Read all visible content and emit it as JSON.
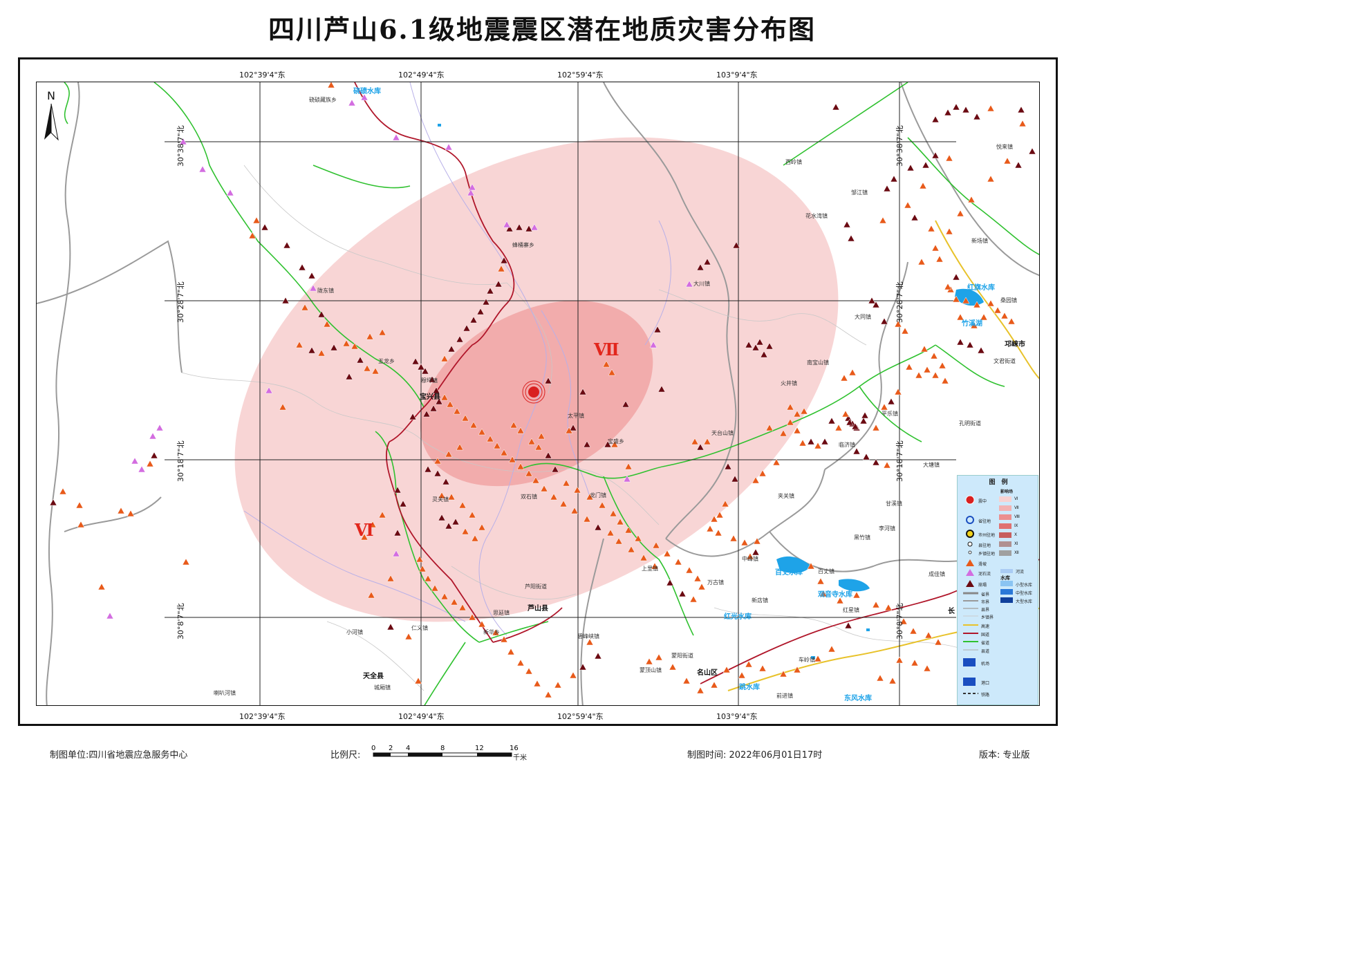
{
  "title": "四川芦山6.1级地震震区潜在地质灾害分布图",
  "coords": {
    "lon": [
      "102°39'4\"东",
      "102°49'4\"东",
      "102°59'4\"东",
      "103°9'4\"东"
    ],
    "lat": [
      "30°38'7\"北",
      "30°28'7\"北",
      "30°18'7\"北",
      "30°8'7\"北"
    ]
  },
  "zones": {
    "vi": "Ⅵ",
    "vii": "Ⅶ"
  },
  "places": {
    "qiaoqi": "硗碛藏族乡",
    "fengtong": "蜂桶寨乡",
    "longdong": "陇东镇",
    "wulong": "五龙乡",
    "muping": "穆坪镇",
    "baoxing": "宝兴县",
    "taiping": "太平镇",
    "baosheng": "宝盛乡",
    "dachuan": "大川镇",
    "xiling": "西岭镇",
    "huashuiwan": "花水湾镇",
    "yunhua": "邹江镇",
    "datong": "大同镇",
    "nanbaoshan": "南宝山镇",
    "huojing": "火井镇",
    "tiantaishan": "天台山镇",
    "linqiong": "临济镇",
    "jiaguan": "夹关镇",
    "pingle": "平乐镇",
    "kongming": "孔明街道",
    "dating": "大塘镇",
    "ganxi": "甘溪镇",
    "lijing": "李河镇",
    "huizhu": "黑竹镇",
    "baizhang": "百丈镇",
    "zhongfeng": "中峰镇",
    "wanguo": "万古镇",
    "xindian": "新店镇",
    "hongxing": "红星镇",
    "chechuan": "车岭镇",
    "mingshan": "名山区",
    "mengding": "蒙顶山镇",
    "mengyang": "蒙阳街道",
    "qianjin": "前进镇",
    "shangli": "上里镇",
    "longmen": "龙门镇",
    "shuangshi": "双石镇",
    "lingguan": "灵关镇",
    "luyangjd": "芦阳街道",
    "lushan": "芦山县",
    "siyan": "思延镇",
    "renyi": "仁义镇",
    "xinhua": "新华乡",
    "bifeng": "碧峰峡镇",
    "xiaohe": "小河镇",
    "tianquan": "天全县",
    "chengxiang": "城厢镇",
    "labahe": "喇叭河镇",
    "xiulian": "悦来镇",
    "xinchang": "新场镇",
    "sanggyuan": "桑园镇",
    "qionglai": "邛崃市",
    "wenjun": "文君街道",
    "chengjia": "成佳镇",
    "zangluo": "长"
  },
  "water": {
    "qiaoqi": "硗碛水库",
    "hongqi": "红旗水库",
    "zhuxi": "竹溪湖",
    "baizhang": "百丈水库",
    "guanyinsi": "观音寺水库",
    "hongguang": "红光水库",
    "tiaoshui": "跳水库",
    "dongfeng": "东风水库"
  },
  "legend": {
    "title": "图　例",
    "epicenter": "震中",
    "influence": "影响场",
    "intensities": [
      "Ⅵ",
      "Ⅶ",
      "Ⅷ",
      "Ⅸ",
      "Ⅹ",
      "Ⅺ",
      "Ⅻ"
    ],
    "intensity_colors": [
      "#f7d2d2",
      "#f2b2b2",
      "#ec8f8f",
      "#e07070",
      "#c75e5e",
      "#b09090",
      "#a0a0a0"
    ],
    "provincial_seat": "省驻地",
    "city_seat": "市州驻地",
    "county_seat": "县驻地",
    "town_seat": "乡镇驻地",
    "landslide": "滑坡",
    "debris_flow": "泥石流",
    "collapse": "崩塌",
    "province_border": "省界",
    "city_border": "市界",
    "county_border": "县界",
    "town_border": "乡镇界",
    "expressway": "高速",
    "national_road": "国道",
    "provincial_road": "省道",
    "county_road": "县道",
    "river": "河流",
    "reservoir": "水库",
    "small_res": "小型水库",
    "medium_res": "中型水库",
    "large_res": "大型水库",
    "airport": "机场",
    "port": "港口",
    "railway": "铁路"
  },
  "footer": {
    "unit": "制图单位:四川省地震应急服务中心",
    "scale_label": "比例尺:",
    "scale_ticks": [
      "0",
      "2",
      "4",
      "8",
      "12",
      "16"
    ],
    "scale_unit": "千米",
    "time": "制图时间: 2022年06月01日17时",
    "version": "版本: 专业版"
  },
  "colors": {
    "zone_vi": "#f8d3d3",
    "zone_vii": "#f2a9a9",
    "epicenter": "#d92020",
    "landslide": "#e85a1a",
    "debris": "#d36de0",
    "collapse": "#6b0a12",
    "national_road": "#b0162a",
    "provincial_road": "#2fc12f",
    "water": "#1ea3e8"
  }
}
